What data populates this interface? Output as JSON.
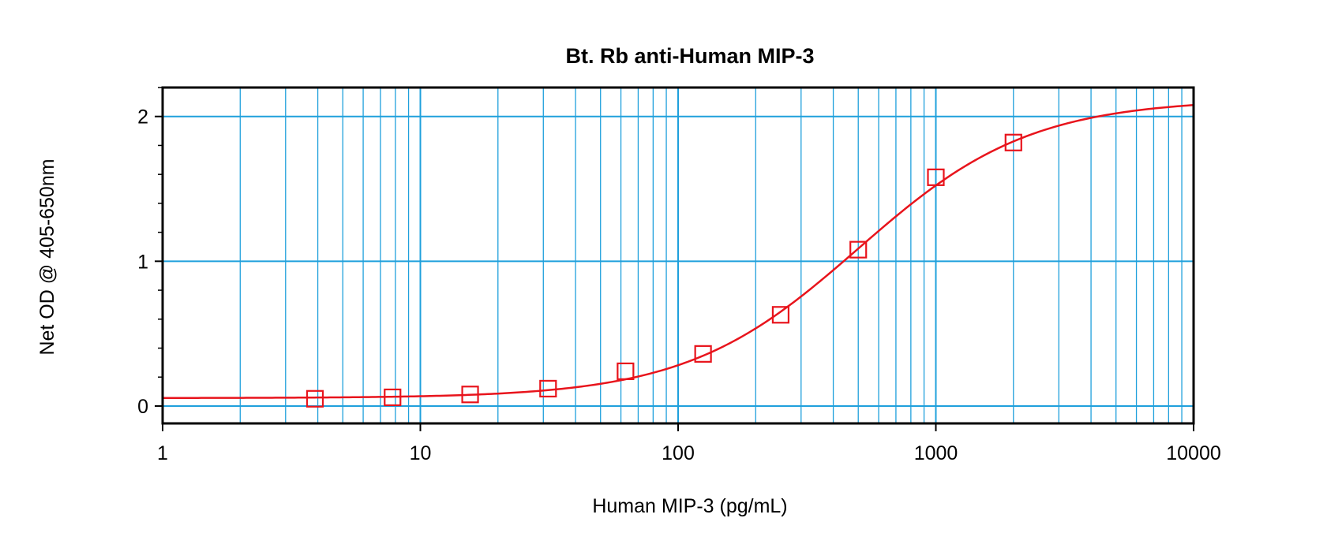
{
  "chart_data": {
    "type": "scatter",
    "title": "Bt. Rb anti-Human MIP-3",
    "xlabel": "Human MIP-3 (pg/mL)",
    "ylabel": "Net OD @ 405-650nm",
    "x_scale": "log",
    "xlim": [
      1,
      10000
    ],
    "ylim": [
      -0.12,
      2.2
    ],
    "x_ticks": [
      1,
      10,
      100,
      1000,
      10000
    ],
    "x_tick_labels": [
      "1",
      "10",
      "100",
      "1000",
      "10000"
    ],
    "y_ticks": [
      0,
      1,
      2
    ],
    "y_tick_labels": [
      "0",
      "1",
      "2"
    ],
    "grid": true,
    "legend": "none",
    "colors": {
      "series": "#e8141c",
      "grid": "#1fa0dc",
      "axes": "#000000"
    },
    "series": [
      {
        "marker": "open-square",
        "points": [
          {
            "x": 3.9,
            "y": 0.05
          },
          {
            "x": 7.8,
            "y": 0.06
          },
          {
            "x": 15.6,
            "y": 0.08
          },
          {
            "x": 31.3,
            "y": 0.12
          },
          {
            "x": 62.5,
            "y": 0.24
          },
          {
            "x": 125,
            "y": 0.36
          },
          {
            "x": 250,
            "y": 0.63
          },
          {
            "x": 500,
            "y": 1.08
          },
          {
            "x": 1000,
            "y": 1.58
          },
          {
            "x": 2000,
            "y": 1.82
          }
        ]
      }
    ],
    "fit": {
      "type": "4PL",
      "bottom": 0.055,
      "top": 2.12,
      "ec50": 500,
      "hill": 1.3
    }
  }
}
